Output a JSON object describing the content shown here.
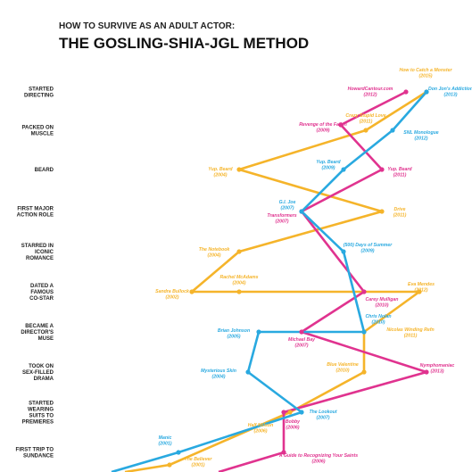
{
  "header": {
    "kicker": "HOW TO SURVIVE AS AN ADULT ACTOR:",
    "title": "THE GOSLING-SHIA-JGL METHOD"
  },
  "rows": [
    [
      "STARTED",
      "DIRECTING"
    ],
    [
      "PACKED ON",
      "MUSCLE"
    ],
    [
      "BEARD"
    ],
    [
      "FIRST MAJOR",
      "ACTION ROLE"
    ],
    [
      "STARRED IN",
      "ICONIC",
      "ROMANCE"
    ],
    [
      "DATED A",
      "FAMOUS",
      "CO-STAR"
    ],
    [
      "BECAME A",
      "DIRECTOR'S",
      "MUSE"
    ],
    [
      "TOOK ON",
      "SEX-FILLED",
      "DRAMA"
    ],
    [
      "STARTED",
      "WEARING",
      "SUITS TO",
      "PREMIERES"
    ],
    [
      "FIRST TRIP TO",
      "SUNDANCE"
    ]
  ],
  "paths": [
    {
      "color": "#f5b42a",
      "nodes": [
        {
          "label": "The Believer",
          "year": "(2001)"
        },
        {
          "label": "Half Nelson",
          "year": "(2006)"
        },
        {
          "label": "Blue Valentine",
          "year": "(2010)"
        },
        {
          "label": "Nicolas Winding Refn",
          "year": "(2011)"
        },
        {
          "label": "Eva Mendes",
          "year": "(2012)"
        },
        {
          "label": "Rachel McAdams",
          "year": "(2004)"
        },
        {
          "label": "Sandra Bullock",
          "year": "(2002)"
        },
        {
          "label": "The Notebook",
          "year": "(2004)"
        },
        {
          "label": "Drive",
          "year": "(2011)"
        },
        {
          "label": "Yup. Beard",
          "year": "(2004)"
        },
        {
          "label": "Crazy Stupid Love",
          "year": "(2011)"
        },
        {
          "label": "How to Catch a Monster",
          "year": "(2015)"
        }
      ]
    },
    {
      "color": "#e0338f",
      "nodes": [
        {
          "label": "A Guide to Recognizing Your Saints",
          "year": "(2006)"
        },
        {
          "label": "Bobby",
          "year": "(2006)"
        },
        {
          "label": "Nymphomaniac",
          "year": "(2013)"
        },
        {
          "label": "Michael Bay",
          "year": "(2007)"
        },
        {
          "label": "Carey Mulligan",
          "year": "(2010)"
        },
        {
          "label": "Transformers",
          "year": "(2007)"
        },
        {
          "label": "Yup. Beard",
          "year": "(2011)"
        },
        {
          "label": "Revenge of the Fallen",
          "year": "(2009)"
        },
        {
          "label": "HowardCantour.com",
          "year": "(2012)"
        }
      ]
    },
    {
      "color": "#29a9e0",
      "nodes": [
        {
          "label": "Manic",
          "year": "(2001)"
        },
        {
          "label": "The Lookout",
          "year": "(2007)"
        },
        {
          "label": "Mysterious Skin",
          "year": "(2004)"
        },
        {
          "label": "Brian Johnson",
          "year": "(2005)"
        },
        {
          "label": "Chris Nolan",
          "year": "(2010)"
        },
        {
          "label": "(500) Days of Summer",
          "year": "(2009)"
        },
        {
          "label": "G.I. Joe",
          "year": "(2007)"
        },
        {
          "label": "Yup. Beard",
          "year": "(2009)"
        },
        {
          "label": "SNL Monologue",
          "year": "(2012)"
        },
        {
          "label": "Don Jon's Addiction",
          "year": "(2013)"
        }
      ]
    }
  ]
}
